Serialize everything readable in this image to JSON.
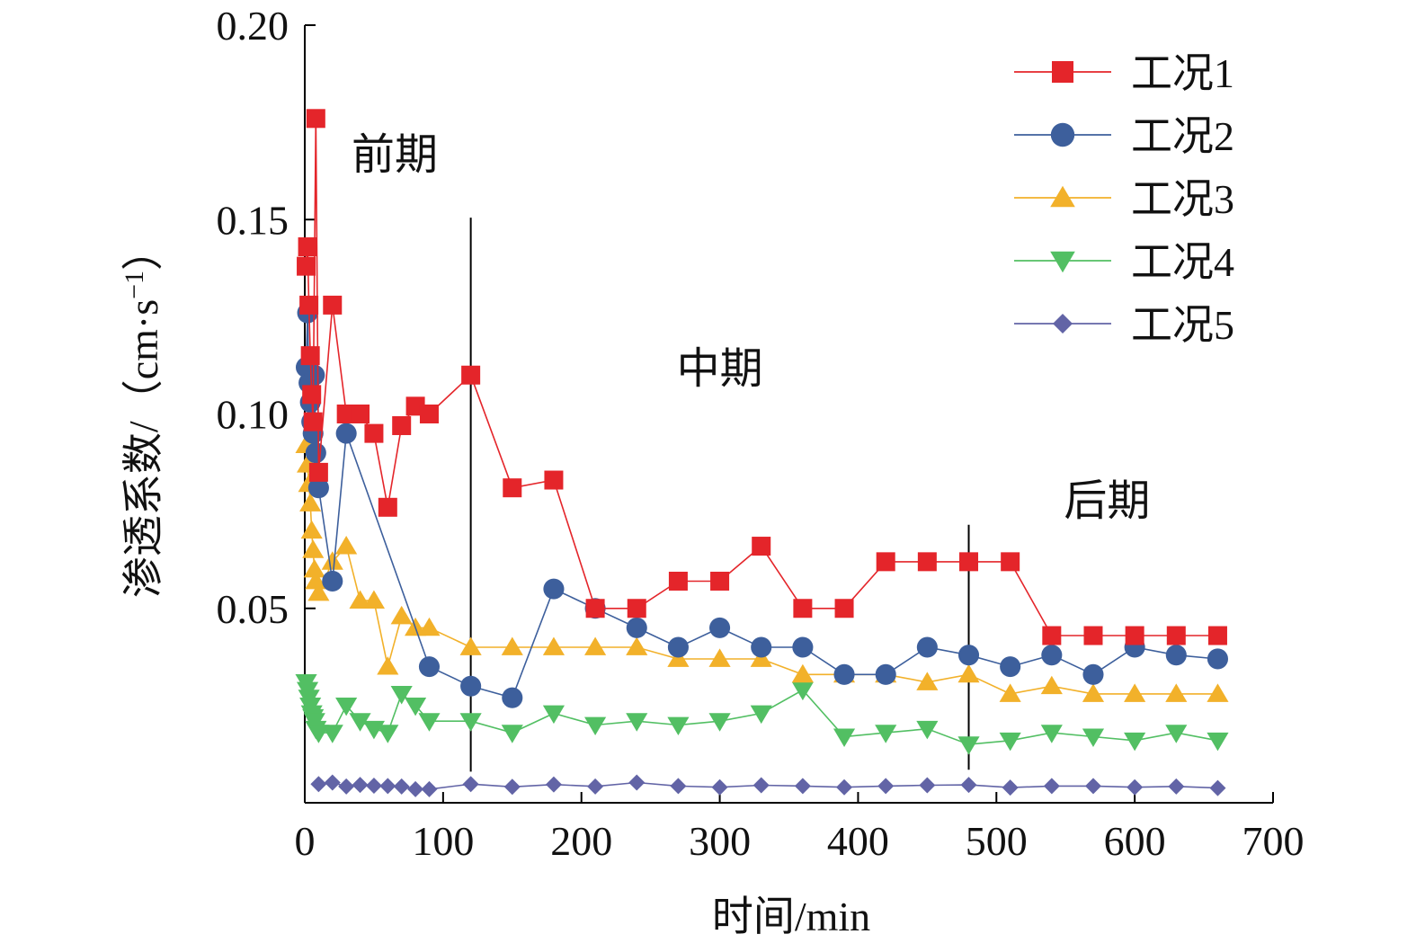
{
  "chart_data": {
    "type": "line",
    "xlabel": "时间/min",
    "ylabel": "渗透系数/（cm·s",
    "ylabel_sup": "−1",
    "ylabel_end": "）",
    "xlim": [
      0,
      700
    ],
    "ylim": [
      0,
      0.2
    ],
    "xticks": [
      0,
      100,
      200,
      300,
      400,
      500,
      600,
      700
    ],
    "xtick_labels": [
      "0",
      "100",
      "200",
      "300",
      "400",
      "500",
      "600",
      "700"
    ],
    "yticks": [
      0.05,
      0.1,
      0.15,
      0.2
    ],
    "ytick_labels": [
      "0.05",
      "0.10",
      "0.15",
      "0.20"
    ],
    "grid": false,
    "legend_position": "top-right",
    "phase_lines": [
      120,
      480
    ],
    "phase_labels": [
      {
        "text": "前期",
        "x": 65,
        "y": 0.163
      },
      {
        "text": "中期",
        "x": 300,
        "y": 0.108
      },
      {
        "text": "后期",
        "x": 580,
        "y": 0.074
      }
    ],
    "series": [
      {
        "name": "工况1",
        "color": "#e4252a",
        "marker": "square",
        "x": [
          1,
          2,
          3,
          4,
          5,
          6,
          8,
          10,
          20,
          30,
          40,
          50,
          60,
          70,
          80,
          90,
          120,
          150,
          180,
          210,
          240,
          270,
          300,
          330,
          360,
          390,
          420,
          450,
          480,
          510,
          540,
          570,
          600,
          630,
          660
        ],
        "y": [
          0.138,
          0.143,
          0.128,
          0.115,
          0.105,
          0.098,
          0.176,
          0.085,
          0.128,
          0.1,
          0.1,
          0.095,
          0.076,
          0.097,
          0.102,
          0.1,
          0.11,
          0.081,
          0.083,
          0.05,
          0.05,
          0.057,
          0.057,
          0.066,
          0.05,
          0.05,
          0.062,
          0.062,
          0.062,
          0.062,
          0.043,
          0.043,
          0.043,
          0.043,
          0.043
        ]
      },
      {
        "name": "工况2",
        "color": "#3d5f9c",
        "marker": "circle",
        "x": [
          1,
          2,
          3,
          4,
          5,
          6,
          7,
          8,
          10,
          20,
          30,
          90,
          120,
          150,
          180,
          210,
          240,
          270,
          300,
          330,
          360,
          390,
          420,
          450,
          480,
          510,
          540,
          570,
          600,
          630,
          660
        ],
        "y": [
          0.112,
          0.126,
          0.108,
          0.103,
          0.098,
          0.095,
          0.11,
          0.09,
          0.081,
          0.057,
          0.095,
          0.035,
          0.03,
          0.027,
          0.055,
          0.05,
          0.045,
          0.04,
          0.045,
          0.04,
          0.04,
          0.033,
          0.033,
          0.04,
          0.038,
          0.035,
          0.038,
          0.033,
          0.04,
          0.038,
          0.037
        ]
      },
      {
        "name": "工况3",
        "color": "#f2b12a",
        "marker": "triangle-up",
        "x": [
          1,
          2,
          3,
          4,
          5,
          6,
          7,
          8,
          10,
          20,
          30,
          40,
          50,
          60,
          70,
          80,
          90,
          120,
          150,
          180,
          210,
          240,
          270,
          300,
          330,
          360,
          390,
          420,
          450,
          480,
          510,
          540,
          570,
          600,
          630,
          660
        ],
        "y": [
          0.092,
          0.087,
          0.082,
          0.077,
          0.07,
          0.065,
          0.06,
          0.057,
          0.054,
          0.062,
          0.066,
          0.052,
          0.052,
          0.035,
          0.048,
          0.045,
          0.045,
          0.04,
          0.04,
          0.04,
          0.04,
          0.04,
          0.037,
          0.037,
          0.037,
          0.033,
          0.033,
          0.033,
          0.031,
          0.033,
          0.028,
          0.03,
          0.028,
          0.028,
          0.028,
          0.028
        ]
      },
      {
        "name": "工况4",
        "color": "#52bf63",
        "marker": "triangle-down",
        "x": [
          1,
          2,
          3,
          4,
          5,
          6,
          7,
          8,
          10,
          20,
          30,
          40,
          50,
          60,
          70,
          80,
          90,
          120,
          150,
          180,
          210,
          240,
          270,
          300,
          330,
          360,
          390,
          420,
          450,
          480,
          510,
          540,
          570,
          600,
          630,
          660
        ],
        "y": [
          0.031,
          0.029,
          0.027,
          0.025,
          0.023,
          0.022,
          0.021,
          0.019,
          0.018,
          0.018,
          0.025,
          0.021,
          0.019,
          0.018,
          0.028,
          0.025,
          0.021,
          0.021,
          0.018,
          0.023,
          0.02,
          0.021,
          0.02,
          0.021,
          0.023,
          0.029,
          0.017,
          0.018,
          0.019,
          0.015,
          0.016,
          0.018,
          0.017,
          0.016,
          0.018,
          0.016
        ]
      },
      {
        "name": "工况5",
        "color": "#6264a6",
        "marker": "diamond",
        "x": [
          10,
          20,
          30,
          40,
          50,
          60,
          70,
          80,
          90,
          120,
          150,
          180,
          210,
          240,
          270,
          300,
          330,
          360,
          390,
          420,
          450,
          480,
          510,
          540,
          570,
          600,
          630,
          660
        ],
        "y": [
          0.0048,
          0.0052,
          0.0042,
          0.0046,
          0.0044,
          0.0043,
          0.0042,
          0.0035,
          0.0035,
          0.0048,
          0.0041,
          0.0047,
          0.0042,
          0.0052,
          0.0043,
          0.004,
          0.0045,
          0.0043,
          0.004,
          0.0043,
          0.0045,
          0.0046,
          0.0039,
          0.0043,
          0.0043,
          0.004,
          0.0042,
          0.0038
        ]
      }
    ]
  }
}
